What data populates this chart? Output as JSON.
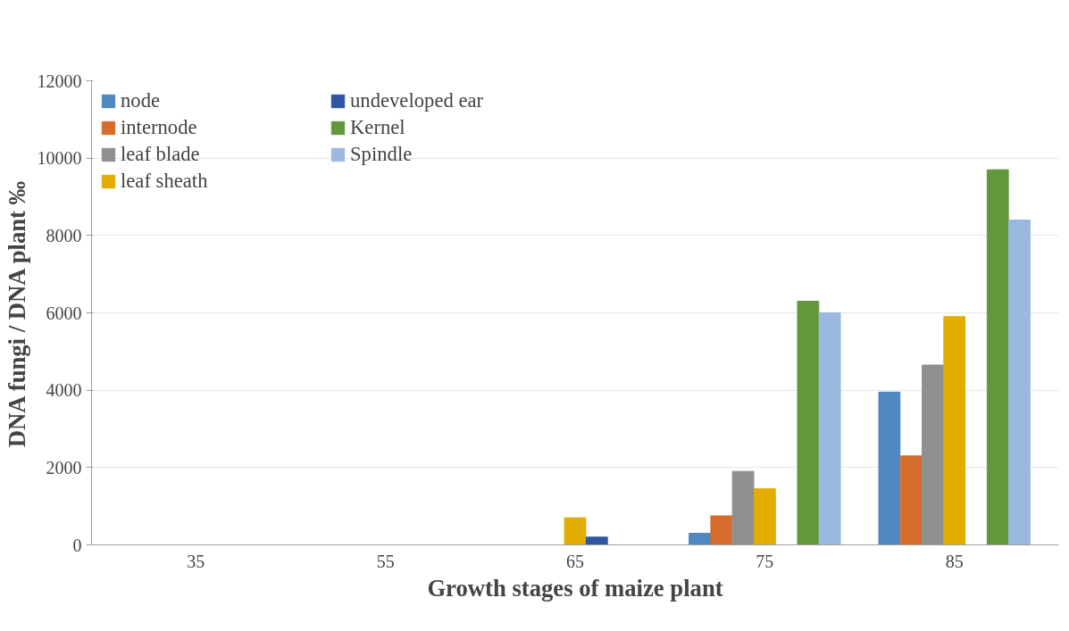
{
  "chart_data": {
    "type": "bar",
    "xlabel": "Growth stages of maize plant",
    "ylabel": "DNA fungi / DNA plant ‰",
    "categories": [
      "35",
      "55",
      "65",
      "75",
      "85"
    ],
    "series": [
      {
        "name": "node",
        "color": "#4f87c0",
        "values": [
          0,
          0,
          0,
          300,
          3950
        ]
      },
      {
        "name": "internode",
        "color": "#d46c2b",
        "values": [
          null,
          0,
          0,
          750,
          2300
        ]
      },
      {
        "name": "leaf blade",
        "color": "#8f8f8f",
        "values": [
          0,
          0,
          0,
          1900,
          4650
        ]
      },
      {
        "name": "leaf sheath",
        "color": "#e2ac00",
        "values": [
          0,
          0,
          700,
          1450,
          5900
        ]
      },
      {
        "name": "undeveloped ear",
        "color": "#2f55a0",
        "values": [
          null,
          0,
          200,
          null,
          null
        ]
      },
      {
        "name": "Kernel",
        "color": "#62983c",
        "values": [
          null,
          null,
          null,
          6300,
          9700
        ]
      },
      {
        "name": "Spindle",
        "color": "#9ab8e0",
        "values": [
          null,
          null,
          null,
          6000,
          8400
        ]
      }
    ],
    "ylim": [
      0,
      12000
    ],
    "yticks": [
      0,
      2000,
      4000,
      6000,
      8000,
      10000,
      12000
    ],
    "grid": "y",
    "legend": "top left"
  }
}
